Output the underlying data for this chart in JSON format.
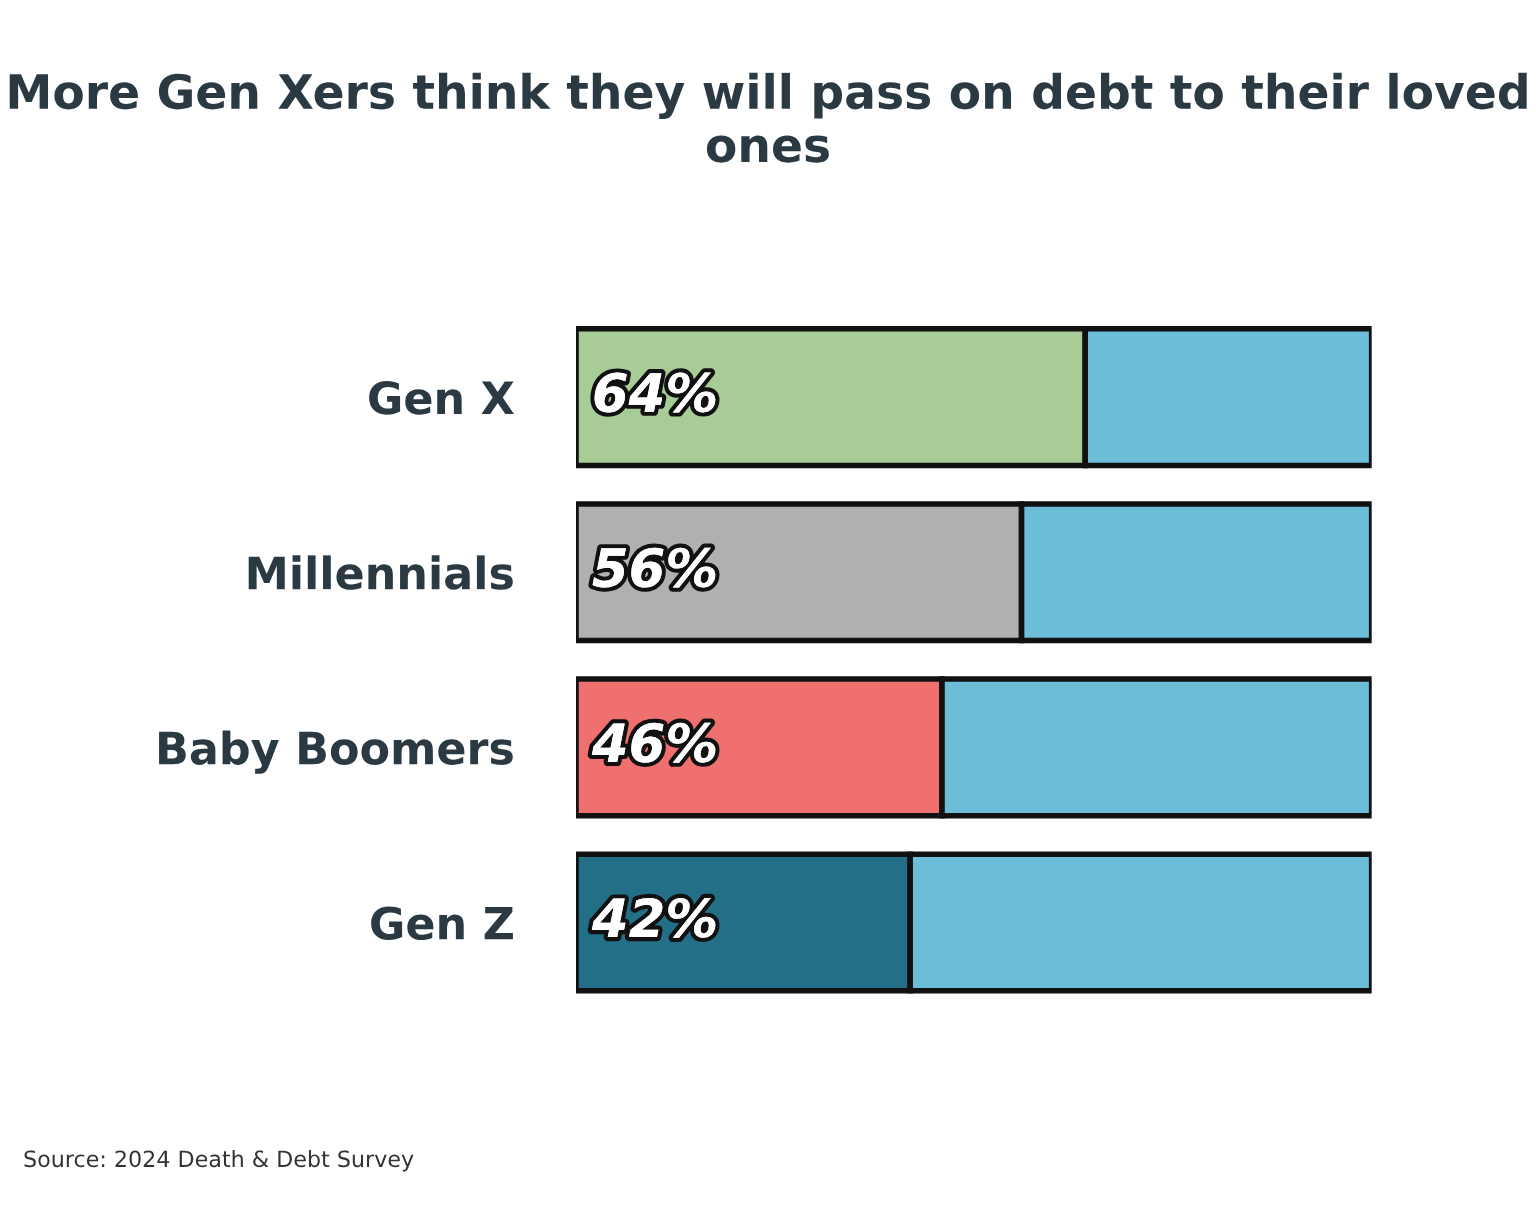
{
  "chart_data": {
    "type": "bar",
    "orientation": "horizontal",
    "stacked": true,
    "title": "More Gen Xers think they will pass on debt to their loved ones",
    "categories": [
      "Gen X",
      "Millennials",
      "Baby Boomers",
      "Gen Z"
    ],
    "series": [
      {
        "colors": [
          "#a8cc96",
          "#b0b0b0",
          "#f07070",
          "#236f88"
        ],
        "values": [
          64,
          56,
          46,
          42
        ],
        "value_labels": [
          "64%",
          "56%",
          "46%",
          "42%"
        ]
      },
      {
        "color": "#6bbdd8",
        "values": [
          36,
          44,
          54,
          58
        ]
      }
    ],
    "xlim": [
      0,
      100
    ],
    "tick_labels": "y",
    "grid": false,
    "legend": false,
    "annotations": [
      "Source: 2024 Death & Debt Survey"
    ]
  }
}
